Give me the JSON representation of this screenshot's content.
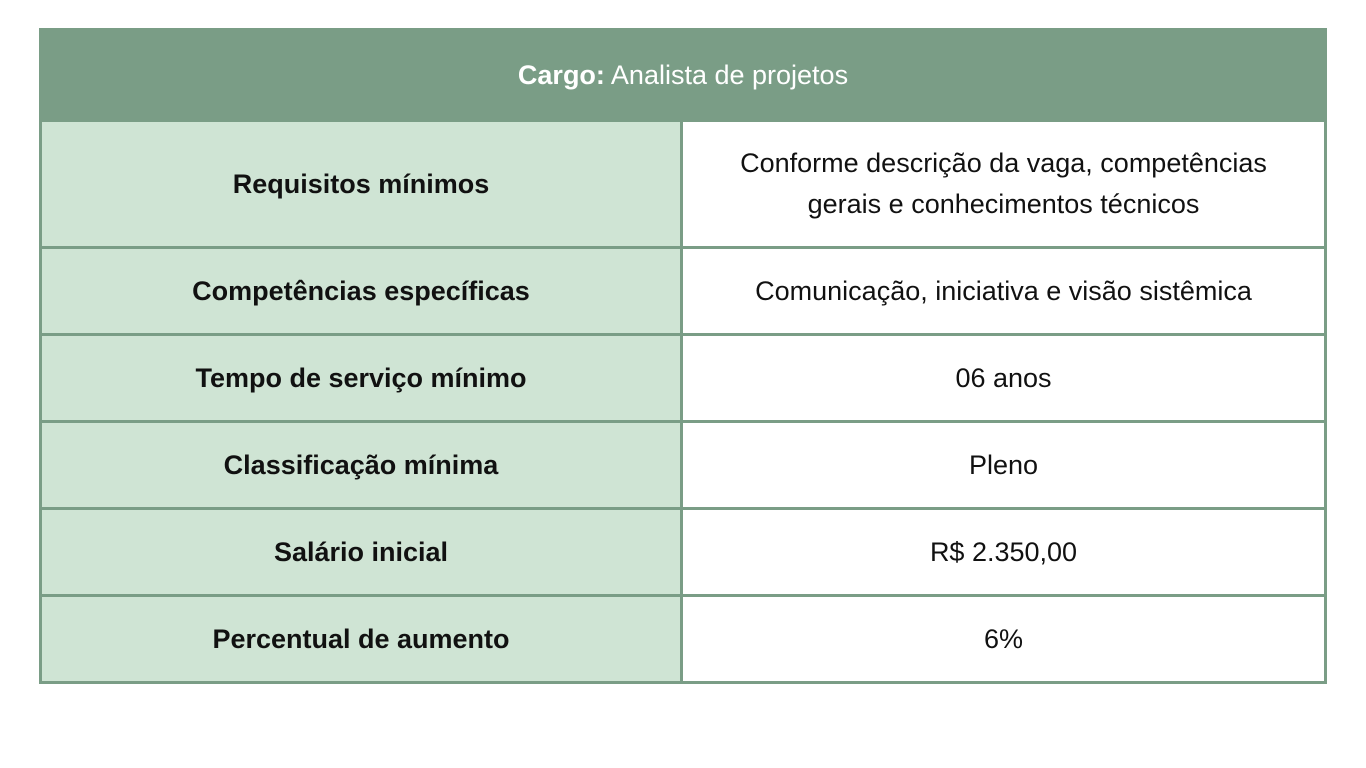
{
  "table": {
    "header": {
      "label": "Cargo:",
      "value": "Analista de projetos"
    },
    "rows": [
      {
        "label": "Requisitos mínimos",
        "value": "Conforme descrição da vaga, competências gerais e conhecimentos técnicos"
      },
      {
        "label": "Competências específicas",
        "value": "Comunicação, iniciativa e visão sistêmica"
      },
      {
        "label": "Tempo de serviço mínimo",
        "value": "06 anos"
      },
      {
        "label": "Classificação mínima",
        "value": "Pleno"
      },
      {
        "label": "Salário inicial",
        "value": "R$ 2.350,00"
      },
      {
        "label": "Percentual de aumento",
        "value": "6%"
      }
    ]
  },
  "colors": {
    "header_bg": "#7a9d86",
    "label_bg": "#cfe4d4",
    "value_bg": "#ffffff",
    "border": "#7a9d86"
  }
}
